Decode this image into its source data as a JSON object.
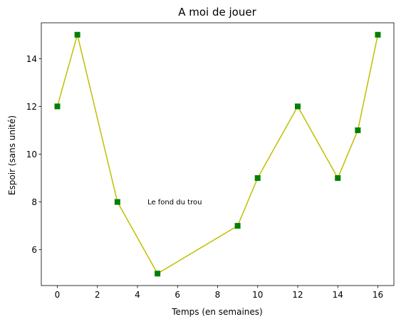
{
  "chart_data": {
    "type": "line",
    "title": "A moi de jouer",
    "xlabel": "Temps (en semaines)",
    "ylabel": "Espoir (sans unité)",
    "xlim": [
      -0.8,
      16.8
    ],
    "ylim": [
      4.5,
      15.5
    ],
    "xticks": [
      0,
      2,
      4,
      6,
      8,
      10,
      12,
      14,
      16
    ],
    "yticks": [
      6,
      8,
      10,
      12,
      14
    ],
    "grid": false,
    "series": [
      {
        "x": [
          0,
          1,
          3,
          5,
          9,
          10,
          12,
          14,
          15,
          16
        ],
        "y": [
          12,
          15,
          8,
          5,
          7,
          9,
          12,
          9,
          11,
          15
        ],
        "line_color": "#bfbf00",
        "marker": "square",
        "marker_color": "#008000"
      }
    ],
    "annotations": [
      {
        "text": "Le fond du trou",
        "x": 4.5,
        "y": 8
      }
    ]
  }
}
